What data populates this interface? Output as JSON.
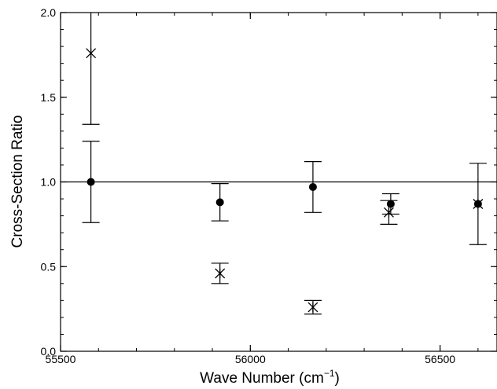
{
  "chart_data": {
    "type": "scatter",
    "title": "",
    "xlabel": "Wave Number (cm",
    "xlabel_sup": "−1",
    "xlabel_close": ")",
    "ylabel": "Cross-Section Ratio",
    "xlim": [
      55500,
      56650
    ],
    "ylim": [
      0.0,
      2.0
    ],
    "xticks": [
      55500,
      56000,
      56500
    ],
    "xtick_labels": [
      "55500",
      "56000",
      "56500"
    ],
    "yticks": [
      0.0,
      0.5,
      1.0,
      1.5,
      2.0
    ],
    "ytick_labels": [
      "0.0",
      "0.5",
      "1.0",
      "1.5",
      "2.0"
    ],
    "reference_line": 1.0,
    "grid": false,
    "series": [
      {
        "marker": "filled-circle",
        "color": "#000000",
        "points": [
          {
            "x": 55580,
            "y": 1.0,
            "ylow": 0.76,
            "yhigh": 1.24
          },
          {
            "x": 55920,
            "y": 0.88,
            "ylow": 0.77,
            "yhigh": 0.99
          },
          {
            "x": 56165,
            "y": 0.97,
            "ylow": 0.82,
            "yhigh": 1.12
          },
          {
            "x": 56370,
            "y": 0.87,
            "ylow": 0.81,
            "yhigh": 0.93
          },
          {
            "x": 56600,
            "y": 0.87,
            "ylow": 0.63,
            "yhigh": 1.11
          }
        ]
      },
      {
        "marker": "asterisk",
        "color": "#000000",
        "points": [
          {
            "x": 55580,
            "y": 1.76,
            "ylow": 1.34,
            "yhigh": 2.18
          },
          {
            "x": 55920,
            "y": 0.46,
            "ylow": 0.4,
            "yhigh": 0.52
          },
          {
            "x": 56165,
            "y": 0.26,
            "ylow": 0.22,
            "yhigh": 0.3
          },
          {
            "x": 56365,
            "y": 0.82,
            "ylow": 0.75,
            "yhigh": 0.89
          },
          {
            "x": 56600,
            "y": 0.87,
            "ylow": 0.87,
            "yhigh": 0.87
          }
        ]
      }
    ]
  }
}
